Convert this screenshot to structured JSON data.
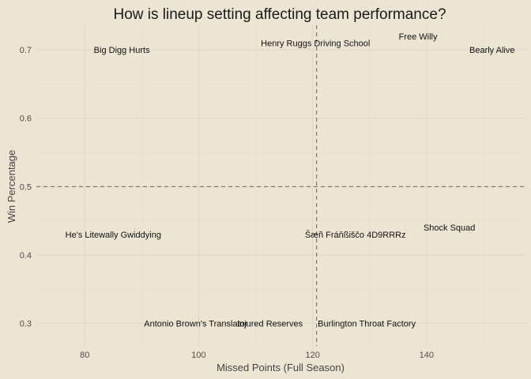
{
  "chart_data": {
    "type": "scatter",
    "title": "How is lineup setting affecting team performance?",
    "xlabel": "Missed Points (Full Season)",
    "ylabel": "Win Percentage",
    "xlim": [
      71.5,
      157.5
    ],
    "ylim": [
      0.267,
      0.736
    ],
    "x_ticks": [
      80,
      100,
      120,
      140
    ],
    "y_ticks": [
      0.3,
      0.4,
      0.5,
      0.6,
      0.7
    ],
    "y_tick_labels": [
      "0.3",
      "0.4",
      "0.5",
      "0.6",
      "0.7"
    ],
    "grid": true,
    "reference_lines": {
      "x": 120.7,
      "y": 0.5
    },
    "points": [
      {
        "label": "Big Digg Hurts",
        "x": 86.5,
        "y": 0.7
      },
      {
        "label": "Henry Ruggs Driving School",
        "x": 120.5,
        "y": 0.71
      },
      {
        "label": "Free Willy",
        "x": 138.5,
        "y": 0.72
      },
      {
        "label": "Bearly Alive",
        "x": 151.5,
        "y": 0.7
      },
      {
        "label": "He's Litewally Gwiddying",
        "x": 85.0,
        "y": 0.43
      },
      {
        "label": "Šæñ Fráňßiščo 4D9RRRz",
        "x": 127.5,
        "y": 0.43
      },
      {
        "label": "Shock Squad",
        "x": 144.0,
        "y": 0.44
      },
      {
        "label": "Antonio Brown's Translator",
        "x": 99.5,
        "y": 0.3
      },
      {
        "label": "Injured Reserves",
        "x": 112.5,
        "y": 0.3
      },
      {
        "label": "Burlington Throat Factory",
        "x": 129.5,
        "y": 0.3
      }
    ]
  }
}
